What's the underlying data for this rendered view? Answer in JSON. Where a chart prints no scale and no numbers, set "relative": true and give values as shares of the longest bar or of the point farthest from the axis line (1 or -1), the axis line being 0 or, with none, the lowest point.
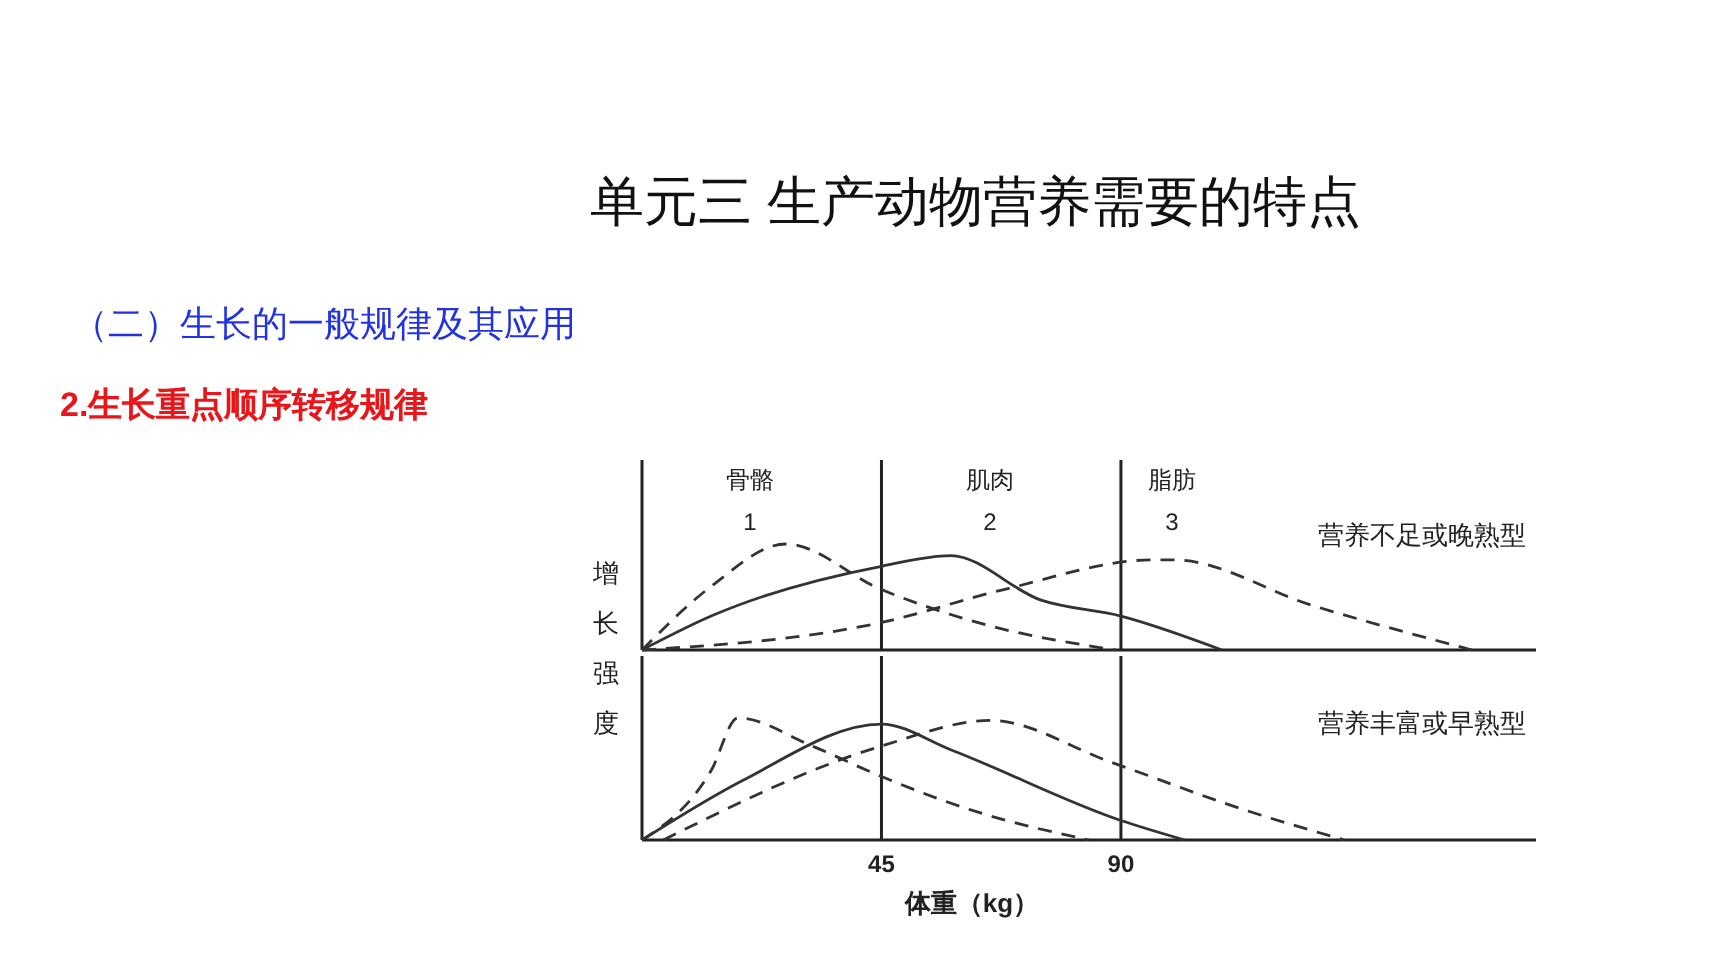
{
  "chart_data": [
    {
      "type": "line",
      "title": "单元三  生产动物营养需要的特点",
      "subtitle": "（二）生长的一般规律及其应用",
      "ylabel": "增长强度",
      "relative": true,
      "xlim": [
        0,
        168
      ],
      "tick_labels": false,
      "marker": "none",
      "annotations": [
        "2.生长重点顺序转移规律",
        "营养不足或晚熟型",
        "骨骼",
        "1",
        "肌肉",
        "2",
        "脂肪",
        "3"
      ],
      "ref_lines": [
        {
          "axis": "x",
          "value": 45,
          "color": "#222222"
        },
        {
          "axis": "x",
          "value": 90,
          "color": "#222222"
        }
      ],
      "series": [
        {
          "color": "#333333",
          "line_style": "dashed",
          "x": [
            0,
            13,
            27,
            45,
            63,
            89
          ],
          "values": [
            0,
            0.6,
            1,
            0.57,
            0.26,
            0
          ]
        },
        {
          "color": "#333333",
          "line_style": "solid",
          "x": [
            0,
            13,
            45,
            58,
            75,
            90,
            109
          ],
          "values": [
            0,
            0.32,
            0.79,
            0.89,
            0.47,
            0.32,
            0
          ]
        },
        {
          "color": "#333333",
          "line_style": "dashed",
          "x": [
            0,
            45,
            68,
            96,
            100,
            126,
            156
          ],
          "values": [
            0,
            0.26,
            0.57,
            0.85,
            0.85,
            0.42,
            0
          ]
        }
      ]
    },
    {
      "type": "line",
      "xlabel": "体重（kg）",
      "relative": true,
      "xlim": [
        0,
        168
      ],
      "xticks": [
        45,
        90
      ],
      "tick_labels": "x",
      "marker": "none",
      "annotations": [
        "营养丰富或早熟型"
      ],
      "ref_lines": [
        {
          "axis": "x",
          "value": 45,
          "color": "#222222"
        },
        {
          "axis": "x",
          "value": 90,
          "color": "#222222"
        }
      ],
      "series": [
        {
          "color": "#333333",
          "line_style": "dashed",
          "x": [
            0,
            13,
            18,
            32,
            45,
            63,
            84
          ],
          "values": [
            0,
            0.57,
            1,
            0.77,
            0.52,
            0.23,
            0
          ]
        },
        {
          "color": "#333333",
          "line_style": "solid",
          "x": [
            0,
            19,
            45,
            58,
            90,
            102
          ],
          "values": [
            0,
            0.49,
            0.95,
            0.74,
            0.16,
            0
          ]
        },
        {
          "color": "#333333",
          "line_style": "dashed",
          "x": [
            4,
            45,
            65.5,
            88,
            113,
            132
          ],
          "values": [
            0,
            0.77,
            0.98,
            0.64,
            0.25,
            0
          ]
        }
      ]
    }
  ]
}
